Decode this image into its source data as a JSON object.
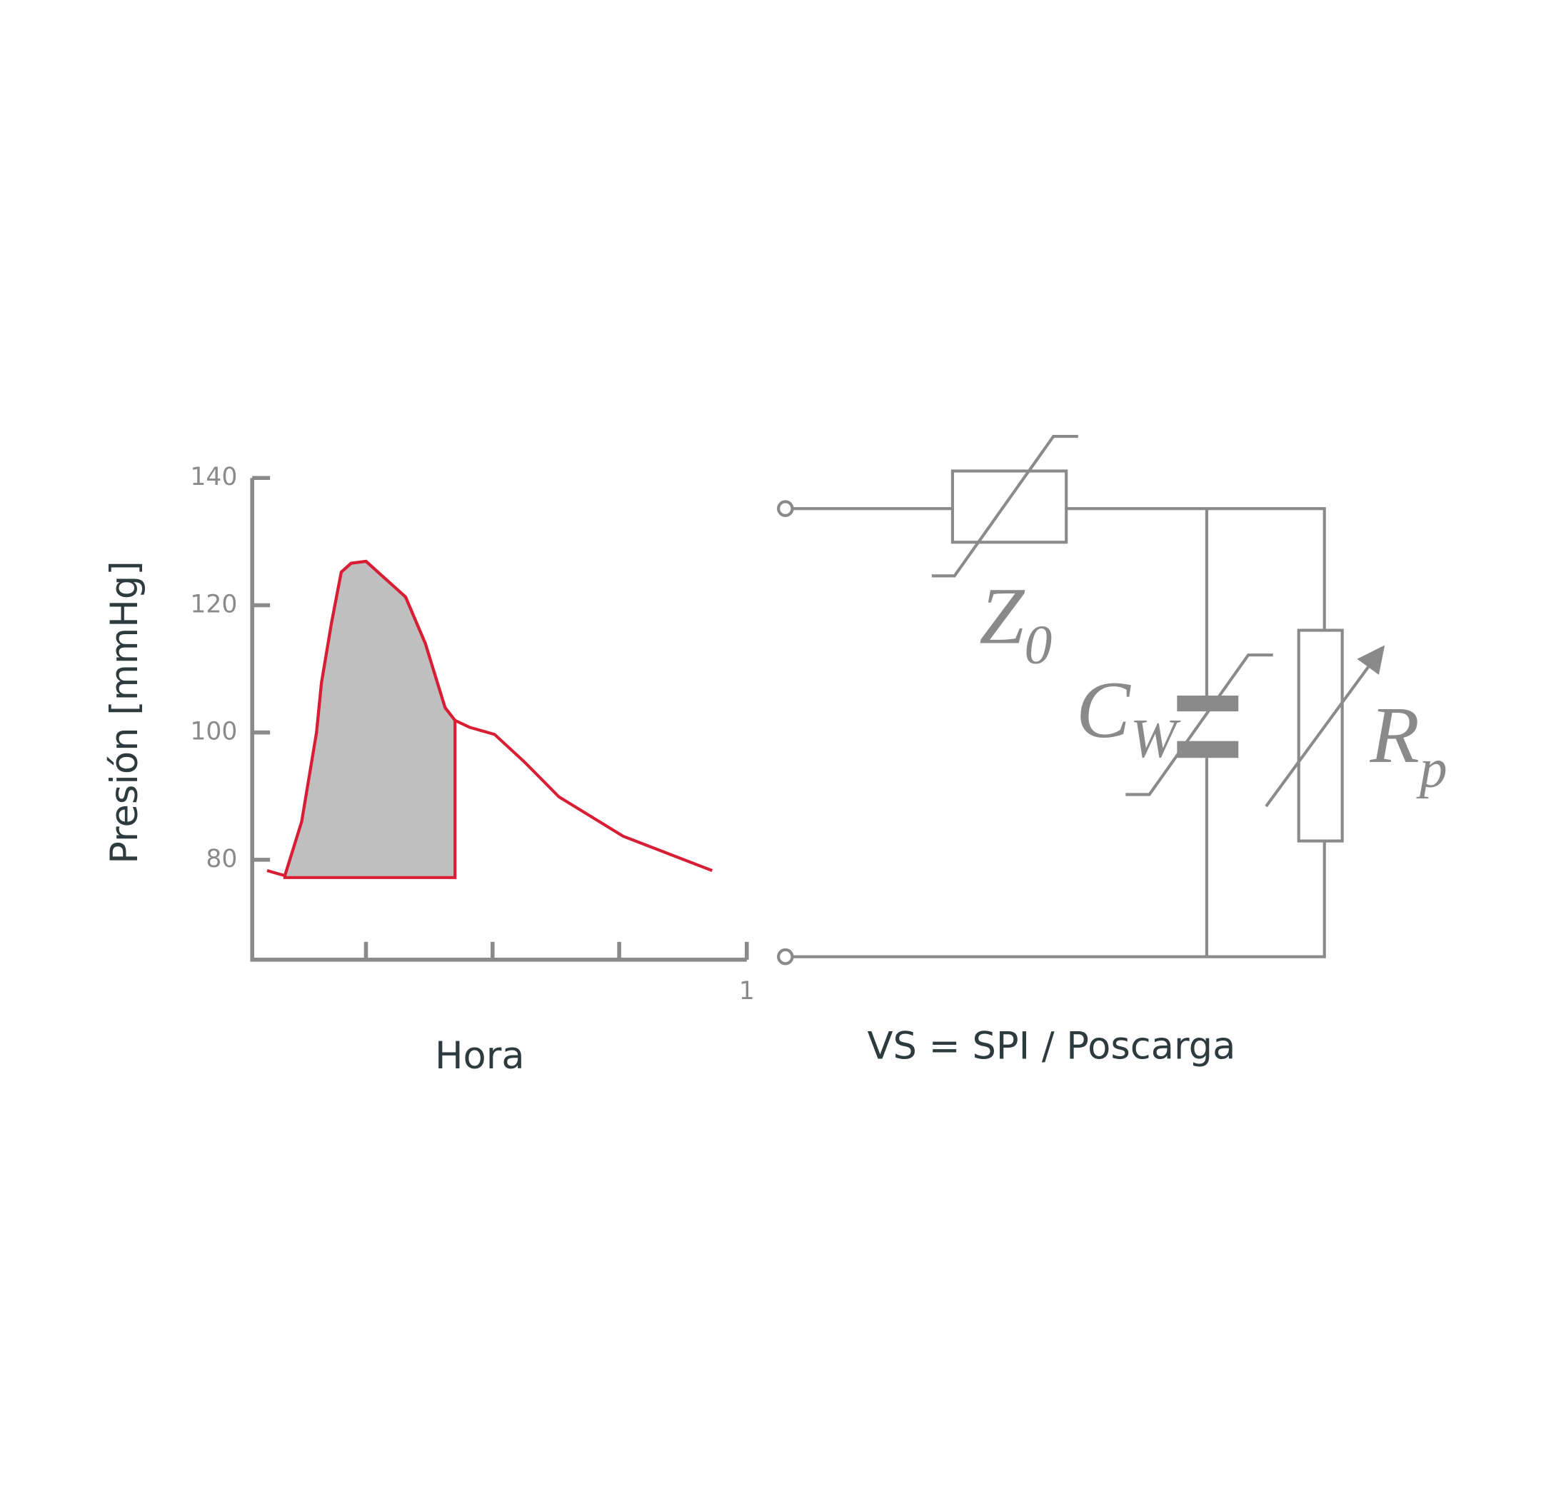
{
  "chart_data": {
    "type": "line",
    "y_label": "Presión [mmHg]",
    "x_label": "Hora",
    "x": [
      0.03,
      0.066,
      0.1,
      0.13,
      0.14,
      0.16,
      0.18,
      0.2,
      0.23,
      0.31,
      0.35,
      0.39,
      0.41,
      0.44,
      0.49,
      0.55,
      0.62,
      0.75,
      0.93
    ],
    "series": [
      {
        "color": "#d81e34",
        "values": [
          78.3,
          77.5,
          86,
          100,
          107.8,
          117.1,
          125.2,
          126.6,
          126.9,
          121.3,
          114,
          103.9,
          101.9,
          100.8,
          99.7,
          95.4,
          89.9,
          83.7,
          78.3
        ]
      }
    ],
    "shaded_area": {
      "from_x": 0.066,
      "to_x": 0.41,
      "base": 77.2,
      "color": "#bfbfbf"
    },
    "xlim": [
      0,
      1
    ],
    "ylim": [
      64.3,
      140
    ],
    "xticks": [
      {
        "value": 0.23,
        "label": null
      },
      {
        "value": 0.486,
        "label": null
      },
      {
        "value": 0.742,
        "label": null
      },
      1
    ],
    "yticks": [
      80,
      100,
      120,
      140
    ]
  },
  "diagram": {
    "formula": "VS = SPI / Poscarga",
    "z0": {
      "main": "Z",
      "sub": "0"
    },
    "cw": {
      "main": "C",
      "sub": "W"
    },
    "rp": {
      "main": "R",
      "sub": "p"
    }
  }
}
